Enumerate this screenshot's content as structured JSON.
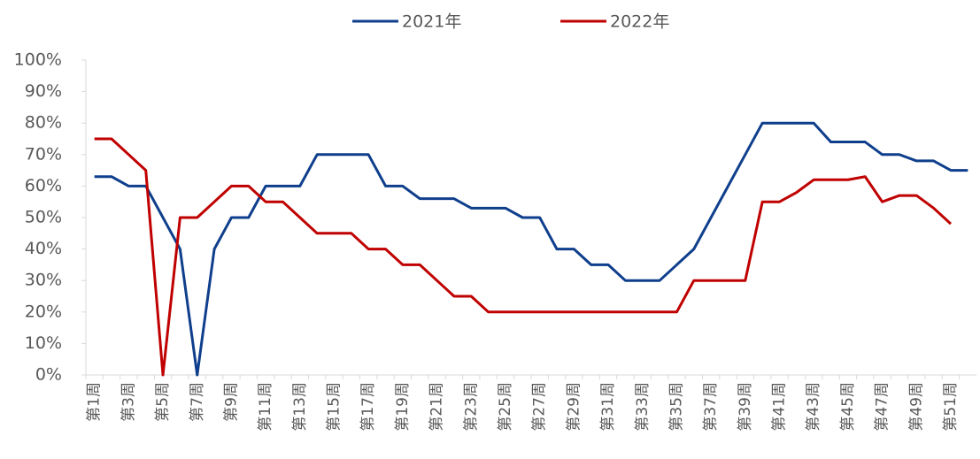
{
  "chart_data": {
    "type": "line",
    "categories": [
      "第1周",
      null,
      "第3周",
      null,
      "第5周",
      null,
      "第7周",
      null,
      "第9周",
      null,
      "第11周",
      null,
      "第13周",
      null,
      "第15周",
      null,
      "第17周",
      null,
      "第19周",
      null,
      "第21周",
      null,
      "第23周",
      null,
      "第25周",
      null,
      "第27周",
      null,
      "第29周",
      null,
      "第31周",
      null,
      "第33周",
      null,
      "第35周",
      null,
      "第37周",
      null,
      "第39周",
      null,
      "第41周",
      null,
      "第43周",
      null,
      "第45周",
      null,
      "第47周",
      null,
      "第49周",
      null,
      "第51周",
      null
    ],
    "series": [
      {
        "name": "2021年",
        "color": "#0f3f8c",
        "values": [
          63,
          63,
          60,
          60,
          50,
          40,
          0,
          40,
          50,
          50,
          60,
          60,
          60,
          70,
          70,
          70,
          70,
          60,
          60,
          56,
          56,
          56,
          53,
          53,
          53,
          50,
          50,
          40,
          40,
          35,
          35,
          30,
          30,
          30,
          35,
          40,
          50,
          60,
          70,
          80,
          80,
          80,
          80,
          74,
          74,
          74,
          70,
          70,
          68,
          68,
          65,
          65
        ]
      },
      {
        "name": "2022年",
        "color": "#c00000",
        "values": [
          75,
          75,
          70,
          65,
          0,
          50,
          50,
          55,
          60,
          60,
          55,
          55,
          50,
          45,
          45,
          45,
          40,
          40,
          35,
          35,
          30,
          25,
          25,
          20,
          20,
          20,
          20,
          20,
          20,
          20,
          20,
          20,
          20,
          20,
          20,
          30,
          30,
          30,
          30,
          55,
          55,
          58,
          62,
          62,
          62,
          63,
          55,
          57,
          57,
          53,
          48,
          null
        ]
      }
    ],
    "ylim": [
      0,
      100
    ],
    "yticks": [
      {
        "value": 0,
        "label": "0%"
      },
      {
        "value": 10,
        "label": "10%"
      },
      {
        "value": 20,
        "label": "20%"
      },
      {
        "value": 30,
        "label": "30%"
      },
      {
        "value": 40,
        "label": "40%"
      },
      {
        "value": 50,
        "label": "50%"
      },
      {
        "value": 60,
        "label": "60%"
      },
      {
        "value": 70,
        "label": "70%"
      },
      {
        "value": 80,
        "label": "80%"
      },
      {
        "value": 90,
        "label": "90%"
      },
      {
        "value": 100,
        "label": "100%"
      }
    ],
    "legend": "top"
  }
}
